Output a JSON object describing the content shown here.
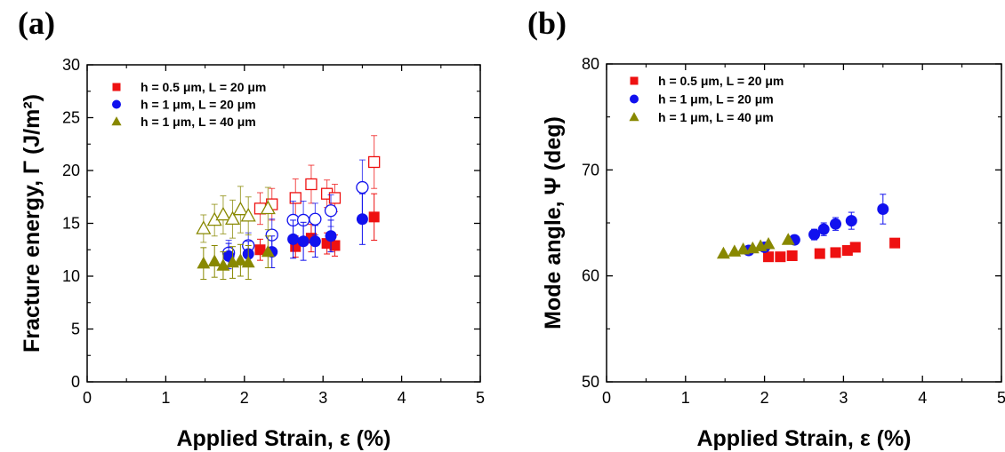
{
  "chart_data": [
    {
      "type": "scatter",
      "panel_label": "(a)",
      "xlabel": "Applied Strain, ε (%)",
      "ylabel": "Fracture energy, Γ (J/m²)",
      "xlim": [
        0,
        5
      ],
      "ylim": [
        0,
        30
      ],
      "xticks": [
        0,
        1,
        2,
        3,
        4,
        5
      ],
      "yticks": [
        0,
        5,
        10,
        15,
        20,
        25,
        30
      ],
      "legend_position": "top-left",
      "series": [
        {
          "name": "h = 0.5 μm, L = 20 μm",
          "marker": "square",
          "color": "#ee1111",
          "filled": [
            [
              2.2,
              12.5,
              1.0
            ],
            [
              2.65,
              12.8,
              1.0
            ],
            [
              2.85,
              13.6,
              1.3
            ],
            [
              3.05,
              13.1,
              1.0
            ],
            [
              3.15,
              12.9,
              1.0
            ],
            [
              3.65,
              15.6,
              2.2
            ]
          ],
          "open": [
            [
              2.2,
              16.4,
              1.5
            ],
            [
              2.35,
              16.8,
              1.5
            ],
            [
              2.65,
              17.4,
              1.8
            ],
            [
              2.85,
              18.7,
              1.8
            ],
            [
              3.05,
              17.8,
              1.3
            ],
            [
              3.15,
              17.4,
              1.3
            ],
            [
              3.65,
              20.8,
              2.5
            ]
          ]
        },
        {
          "name": "h = 1 μm, L = 20 μm",
          "marker": "circle",
          "color": "#1111ee",
          "filled": [
            [
              1.8,
              11.9,
              1.2
            ],
            [
              2.05,
              12.1,
              1.2
            ],
            [
              2.35,
              12.3,
              1.5
            ],
            [
              2.62,
              13.5,
              1.8
            ],
            [
              2.75,
              13.3,
              1.8
            ],
            [
              2.9,
              13.3,
              1.5
            ],
            [
              3.1,
              13.8,
              1.5
            ],
            [
              3.5,
              15.4,
              2.4
            ]
          ],
          "open": [
            [
              1.8,
              12.2,
              1.2
            ],
            [
              2.05,
              12.9,
              1.2
            ],
            [
              2.35,
              13.9,
              1.5
            ],
            [
              2.62,
              15.3,
              1.8
            ],
            [
              2.75,
              15.3,
              1.8
            ],
            [
              2.9,
              15.4,
              1.5
            ],
            [
              3.1,
              16.2,
              1.5
            ],
            [
              3.5,
              18.4,
              2.6
            ]
          ]
        },
        {
          "name": "h = 1 μm, L = 40 μm",
          "marker": "triangle",
          "color": "#888800",
          "filled": [
            [
              1.48,
              11.2,
              1.5
            ],
            [
              1.62,
              11.4,
              1.5
            ],
            [
              1.73,
              11.0,
              1.3
            ],
            [
              1.85,
              11.3,
              1.5
            ],
            [
              1.95,
              11.5,
              1.5
            ],
            [
              2.05,
              11.3,
              1.6
            ],
            [
              2.3,
              12.3,
              1.5
            ]
          ],
          "open": [
            [
              1.48,
              14.5,
              1.3
            ],
            [
              1.62,
              15.3,
              1.5
            ],
            [
              1.73,
              15.8,
              1.8
            ],
            [
              1.85,
              15.4,
              1.8
            ],
            [
              1.95,
              16.3,
              2.2
            ],
            [
              2.05,
              15.7,
              1.8
            ],
            [
              2.3,
              16.4,
              2.0
            ]
          ]
        }
      ]
    },
    {
      "type": "scatter",
      "panel_label": "(b)",
      "xlabel": "Applied Strain, ε (%)",
      "ylabel": "Mode angle, Ψ (deg)",
      "xlim": [
        0,
        5
      ],
      "ylim": [
        50,
        80
      ],
      "xticks": [
        0,
        1,
        2,
        3,
        4,
        5
      ],
      "yticks": [
        50,
        60,
        70,
        80
      ],
      "legend_position": "top-left",
      "series": [
        {
          "name": "h = 0.5 μm, L = 20 μm",
          "marker": "square",
          "color": "#ee1111",
          "filled": [
            [
              2.05,
              61.8,
              0
            ],
            [
              2.2,
              61.8,
              0
            ],
            [
              2.35,
              61.9,
              0
            ],
            [
              2.7,
              62.1,
              0
            ],
            [
              2.9,
              62.2,
              0
            ],
            [
              3.05,
              62.4,
              0
            ],
            [
              3.15,
              62.7,
              0
            ],
            [
              3.65,
              63.1,
              0
            ]
          ],
          "open": []
        },
        {
          "name": "h = 1 μm, L = 20 μm",
          "marker": "circle",
          "color": "#1111ee",
          "filled": [
            [
              1.8,
              62.4,
              0.4
            ],
            [
              2.0,
              62.7,
              0.4
            ],
            [
              2.38,
              63.4,
              0.4
            ],
            [
              2.63,
              63.9,
              0.5
            ],
            [
              2.75,
              64.4,
              0.6
            ],
            [
              2.9,
              64.9,
              0.6
            ],
            [
              3.1,
              65.2,
              0.8
            ],
            [
              3.5,
              66.3,
              1.4
            ]
          ],
          "open": []
        },
        {
          "name": "h = 1 μm, L = 40 μm",
          "marker": "triangle",
          "color": "#888800",
          "filled": [
            [
              1.48,
              62.1,
              0
            ],
            [
              1.62,
              62.3,
              0
            ],
            [
              1.73,
              62.5,
              0
            ],
            [
              1.85,
              62.6,
              0
            ],
            [
              1.95,
              62.8,
              0
            ],
            [
              2.05,
              63.0,
              0
            ],
            [
              2.3,
              63.4,
              0
            ]
          ],
          "open": []
        }
      ]
    }
  ]
}
